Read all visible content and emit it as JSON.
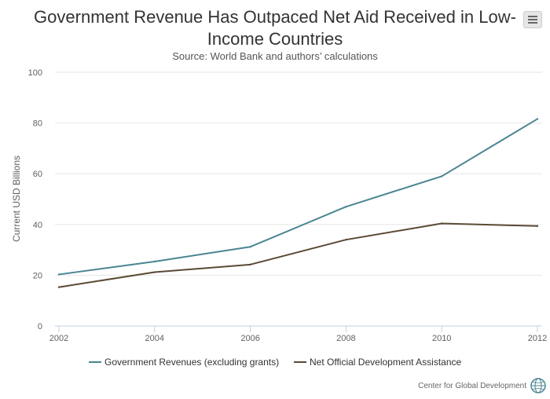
{
  "header": {
    "title": "Government Revenue Has Outpaced Net Aid Received in Low-Income Countries",
    "subtitle": "Source: World Bank and authors’ calculations",
    "menu_icon": "hamburger-menu-icon"
  },
  "credit": {
    "text": "Center for Global Development",
    "logo_icon": "globe-logo-icon"
  },
  "chart_data": {
    "type": "line",
    "ylabel": "Current USD Billions",
    "xlabel": "",
    "ylim": [
      0,
      100
    ],
    "y_ticks": [
      "0",
      "20",
      "40",
      "60",
      "80",
      "100"
    ],
    "x_ticks": [
      "2002",
      "2004",
      "2006",
      "2008",
      "2010",
      "2012"
    ],
    "grid": "horizontal",
    "legend_position": "bottom",
    "series": [
      {
        "name": "Government Revenues (excluding grants)",
        "color": "#4a8592",
        "x": [
          2002,
          2004,
          2006,
          2008,
          2010,
          2012
        ],
        "values": [
          20.3,
          25.4,
          31.2,
          47,
          59,
          81.6
        ]
      },
      {
        "name": "Net Official Development Assistance",
        "color": "#5a4a35",
        "x": [
          2002,
          2004,
          2006,
          2008,
          2010,
          2012
        ],
        "values": [
          15.3,
          21.2,
          24.2,
          34,
          40.4,
          39.4
        ]
      }
    ]
  }
}
